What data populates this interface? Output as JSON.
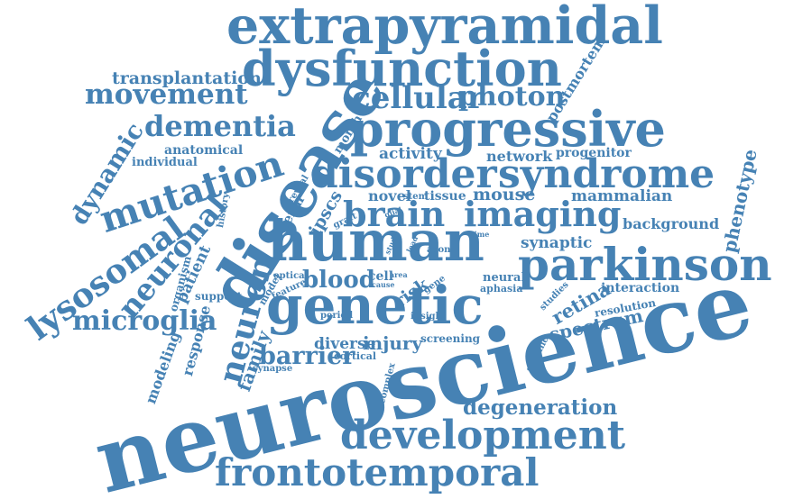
{
  "words": [
    "extrapyramidal",
    "dysfunction",
    "transplantation",
    "movement",
    "cellular",
    "photon",
    "postmortem",
    "dementia",
    "progressive",
    "month",
    "anatomical",
    "individual",
    "activity",
    "network",
    "progenitor",
    "dynamic",
    "mutation",
    "disease",
    "disorder",
    "syndrome",
    "phenotype",
    "history",
    "reveal",
    "ipscs",
    "novel",
    "stem",
    "tissue",
    "mouse",
    "mammalian",
    "term",
    "brain",
    "imaging",
    "graft",
    "glial",
    "lysosomal",
    "neuronal",
    "organism",
    "human",
    "time",
    "background",
    "synaptic",
    "study",
    "lead",
    "axon",
    "patient",
    "parkinson",
    "support",
    "optical",
    "feature",
    "model",
    "cell",
    "area",
    "cause",
    "gene",
    "neural",
    "aphasia",
    "risk",
    "blood",
    "neuron",
    "genetic",
    "retina",
    "interaction",
    "microglia",
    "studies",
    "period",
    "insight",
    "spectrum",
    "resolution",
    "modeling",
    "response",
    "family",
    "diverse",
    "injury",
    "screening",
    "barrier",
    "cortical",
    "synapse",
    "specific",
    "complex",
    "neuroscience",
    "degeneration",
    "development",
    "frontotemporal"
  ],
  "colors": {
    "word": "#4682b4",
    "background": "#ffffff"
  }
}
